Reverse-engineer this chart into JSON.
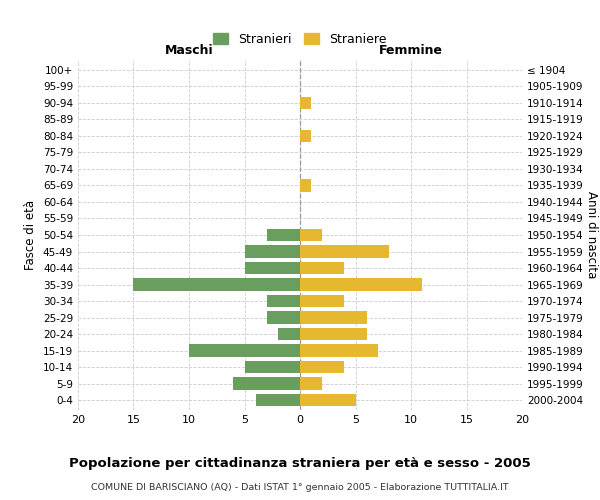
{
  "age_groups": [
    "100+",
    "95-99",
    "90-94",
    "85-89",
    "80-84",
    "75-79",
    "70-74",
    "65-69",
    "60-64",
    "55-59",
    "50-54",
    "45-49",
    "40-44",
    "35-39",
    "30-34",
    "25-29",
    "20-24",
    "15-19",
    "10-14",
    "5-9",
    "0-4"
  ],
  "birth_years": [
    "≤ 1904",
    "1905-1909",
    "1910-1914",
    "1915-1919",
    "1920-1924",
    "1925-1929",
    "1930-1934",
    "1935-1939",
    "1940-1944",
    "1945-1949",
    "1950-1954",
    "1955-1959",
    "1960-1964",
    "1965-1969",
    "1970-1974",
    "1975-1979",
    "1980-1984",
    "1985-1989",
    "1990-1994",
    "1995-1999",
    "2000-2004"
  ],
  "maschi": [
    0,
    0,
    0,
    0,
    0,
    0,
    0,
    0,
    0,
    0,
    3,
    5,
    5,
    15,
    3,
    3,
    2,
    10,
    5,
    6,
    4
  ],
  "femmine": [
    0,
    0,
    1,
    0,
    1,
    0,
    0,
    1,
    0,
    0,
    2,
    8,
    4,
    11,
    4,
    6,
    6,
    7,
    4,
    2,
    5
  ],
  "maschi_color": "#6a9e5f",
  "femmine_color": "#e6b830",
  "background_color": "#ffffff",
  "grid_color": "#cccccc",
  "title": "Popolazione per cittadinanza straniera per età e sesso - 2005",
  "subtitle": "COMUNE DI BARISCIANO (AQ) - Dati ISTAT 1° gennaio 2005 - Elaborazione TUTTITALIA.IT",
  "xlabel_left": "Maschi",
  "xlabel_right": "Femmine",
  "ylabel_left": "Fasce di età",
  "ylabel_right": "Anni di nascita",
  "legend_maschi": "Stranieri",
  "legend_femmine": "Straniere",
  "xlim": 20,
  "bar_height": 0.75
}
